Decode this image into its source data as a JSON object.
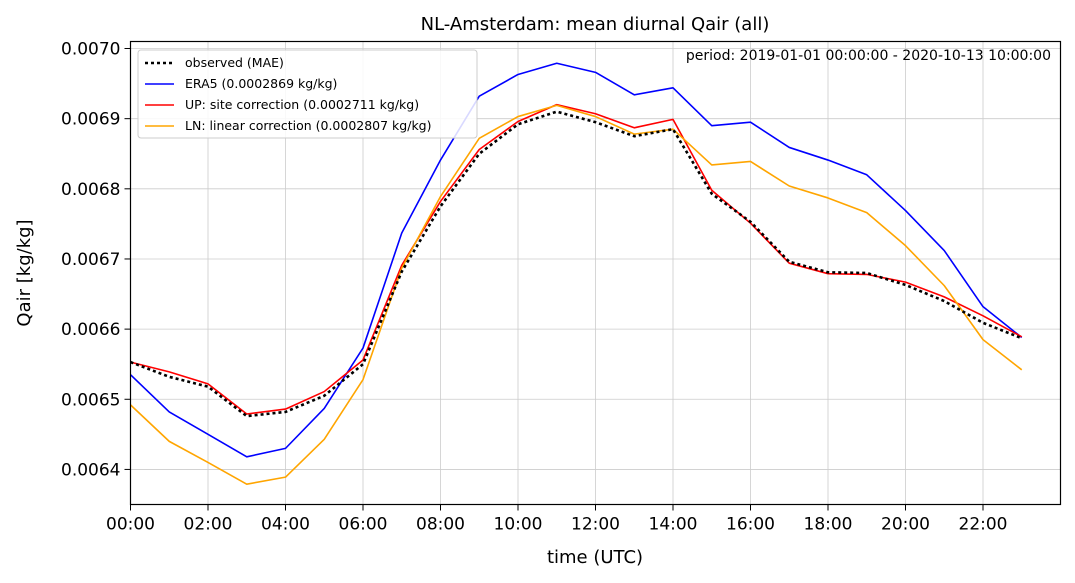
{
  "chart_data": {
    "type": "line",
    "title": "NL-Amsterdam: mean diurnal Qair (all)",
    "xlabel": "time (UTC)",
    "ylabel": "Qair [kg/kg]",
    "annotation": "period: 2019-01-01 00:00:00 - 2020-10-13 10:00:00",
    "xlim": [
      0,
      24
    ],
    "ylim": [
      0.00635,
      0.00701
    ],
    "grid": true,
    "legend_position": "top-left",
    "x": [
      0,
      1,
      2,
      3,
      4,
      5,
      6,
      7,
      8,
      9,
      10,
      11,
      12,
      13,
      14,
      15,
      16,
      17,
      18,
      19,
      20,
      21,
      22,
      23
    ],
    "x_ticks": [
      0,
      2,
      4,
      6,
      8,
      10,
      12,
      14,
      16,
      18,
      20,
      22
    ],
    "x_tick_labels": [
      "00:00",
      "02:00",
      "04:00",
      "06:00",
      "08:00",
      "10:00",
      "12:00",
      "14:00",
      "16:00",
      "18:00",
      "20:00",
      "22:00"
    ],
    "y_ticks": [
      0.0064,
      0.0065,
      0.0066,
      0.0067,
      0.0068,
      0.0069,
      0.007
    ],
    "y_tick_labels": [
      "0.0064",
      "0.0065",
      "0.0066",
      "0.0067",
      "0.0068",
      "0.0069",
      "0.0070"
    ],
    "series": [
      {
        "name": "ERA5 (0.0002869 kg/kg)",
        "color": "#0000ff",
        "style": "solid",
        "values": [
          0.006535,
          0.006482,
          0.00645,
          0.006418,
          0.00643,
          0.006487,
          0.006573,
          0.006737,
          0.006841,
          0.006932,
          0.006963,
          0.006979,
          0.006966,
          0.006934,
          0.006944,
          0.00689,
          0.006895,
          0.006859,
          0.006841,
          0.00682,
          0.006769,
          0.006712,
          0.006632,
          0.006588
        ]
      },
      {
        "name": "UP: site correction (0.0002711 kg/kg)",
        "color": "#ff0000",
        "style": "solid",
        "values": [
          0.006553,
          0.006539,
          0.006522,
          0.006479,
          0.006486,
          0.006511,
          0.006556,
          0.006691,
          0.006782,
          0.006856,
          0.006896,
          0.00692,
          0.006907,
          0.006887,
          0.006899,
          0.006798,
          0.006751,
          0.006694,
          0.006679,
          0.006678,
          0.006667,
          0.006646,
          0.006619,
          0.006589
        ]
      },
      {
        "name": "LN: linear correction (0.0002807 kg/kg)",
        "color": "#ffa500",
        "style": "solid",
        "values": [
          0.006492,
          0.00644,
          0.00641,
          0.006379,
          0.006389,
          0.006443,
          0.006528,
          0.006687,
          0.006789,
          0.006872,
          0.006903,
          0.006919,
          0.006903,
          0.006878,
          0.006885,
          0.006834,
          0.006839,
          0.006804,
          0.006787,
          0.006766,
          0.006719,
          0.006662,
          0.006585,
          0.006542
        ]
      },
      {
        "name": "observed (MAE)",
        "color": "#000000",
        "style": "dotted",
        "values": [
          0.006553,
          0.006532,
          0.006518,
          0.006476,
          0.006482,
          0.006505,
          0.00655,
          0.006682,
          0.006775,
          0.00685,
          0.006892,
          0.00691,
          0.006895,
          0.006875,
          0.006885,
          0.006793,
          0.006753,
          0.006696,
          0.006681,
          0.00668,
          0.006663,
          0.00664,
          0.006609,
          0.006587
        ]
      }
    ],
    "legend_order": [
      3,
      0,
      1,
      2
    ]
  }
}
